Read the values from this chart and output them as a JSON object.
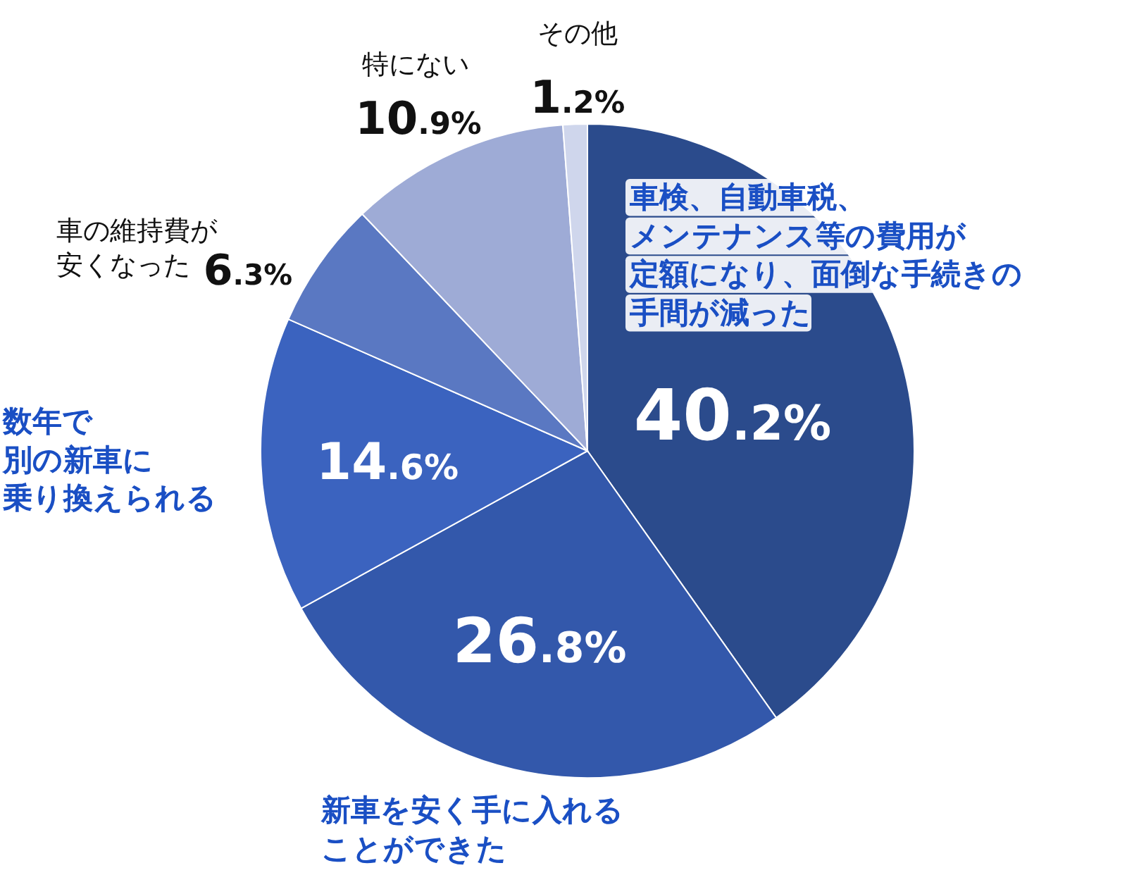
{
  "chart_data": {
    "type": "pie",
    "categories": [
      "車検、自動車税、メンテナンス等の費用が定額になり、面倒な手続きの手間が減った",
      "新車を安く手に入れることができた",
      "数年で別の新車に乗り換えられる",
      "車の維持費が安くなった",
      "特にない",
      "その他"
    ],
    "values": [
      40.2,
      26.8,
      14.6,
      6.3,
      10.9,
      1.2
    ],
    "colors": [
      "#2b4b8c",
      "#3358ab",
      "#3b63bf",
      "#5a78c2",
      "#9eabd6",
      "#cfd6ec"
    ],
    "value_labels": [
      "40.2%",
      "26.8%",
      "14.6%",
      "6.3%",
      "10.9%",
      "1.2%"
    ]
  }
}
